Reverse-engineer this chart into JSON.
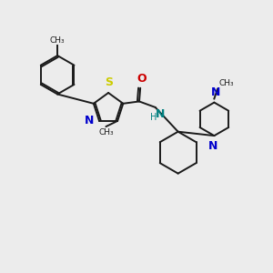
{
  "bg_color": "#ececec",
  "bond_color": "#1a1a1a",
  "S_color": "#cccc00",
  "N_color": "#0000cc",
  "O_color": "#cc0000",
  "NH_color": "#008080",
  "figsize": [
    3.0,
    3.0
  ],
  "dpi": 100,
  "xlim": [
    0,
    10
  ],
  "ylim": [
    0,
    10
  ]
}
